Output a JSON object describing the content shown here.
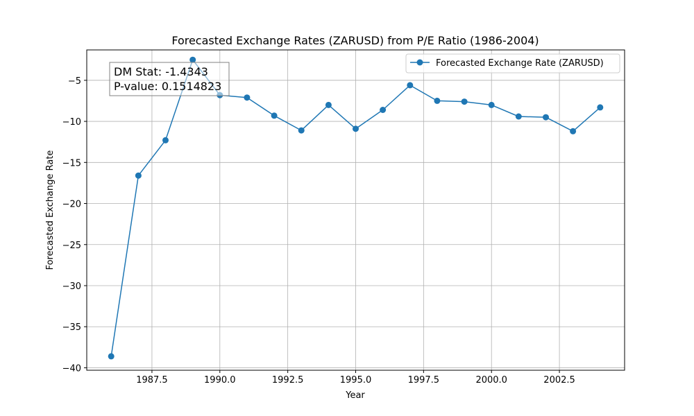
{
  "chart_data": {
    "type": "line",
    "title": "Forecasted Exchange Rates (ZARUSD) from P/E Ratio (1986-2004)",
    "xlabel": "Year",
    "ylabel": "Forecasted Exchange Rate",
    "xlim": [
      1985.1,
      2004.9
    ],
    "ylim": [
      -40.3,
      -1.3
    ],
    "xticks": [
      1987.5,
      1990.0,
      1992.5,
      1995.0,
      1997.5,
      2000.0,
      2002.5
    ],
    "xtick_labels": [
      "1987.5",
      "1990.0",
      "1992.5",
      "1995.0",
      "1997.5",
      "2000.0",
      "2002.5"
    ],
    "yticks": [
      -5,
      -10,
      -15,
      -20,
      -25,
      -30,
      -35,
      -40
    ],
    "ytick_labels": [
      "−5",
      "−10",
      "−15",
      "−20",
      "−25",
      "−30",
      "−35",
      "−40"
    ],
    "grid": true,
    "legend_position": "top-right",
    "series": [
      {
        "name": "Forecasted Exchange Rate (ZARUSD)",
        "color": "#1f77b4",
        "marker": "circle",
        "x": [
          1986,
          1987,
          1988,
          1989,
          1990,
          1991,
          1992,
          1993,
          1994,
          1995,
          1996,
          1997,
          1998,
          1999,
          2000,
          2001,
          2002,
          2003,
          2004
        ],
        "y": [
          -38.6,
          -16.6,
          -12.3,
          -2.5,
          -6.8,
          -7.1,
          -9.3,
          -11.1,
          -8.0,
          -10.9,
          -8.6,
          -5.6,
          -7.5,
          -7.6,
          -8.0,
          -9.4,
          -9.5,
          -11.2,
          -8.3
        ]
      }
    ],
    "annotation": {
      "dm_stat": "DM Stat: -1.4343",
      "p_value": "P-value: 0.1514823"
    }
  }
}
